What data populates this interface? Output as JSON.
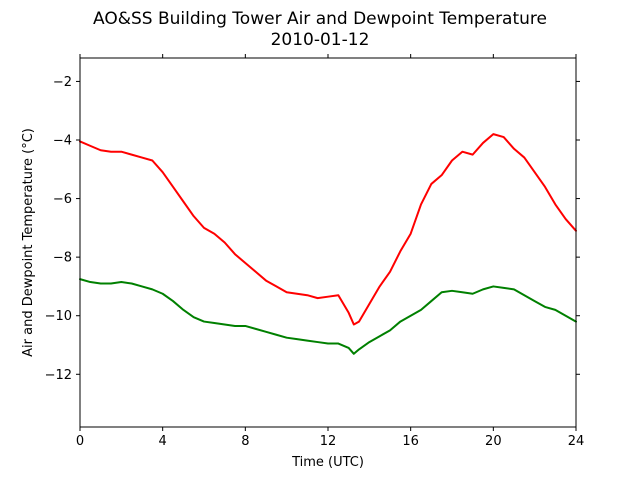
{
  "chart_data": {
    "type": "line",
    "title": "AO&SS Building Tower Air and Dewpoint Temperature",
    "subtitle": "2010-01-12",
    "xlabel": "Time (UTC)",
    "ylabel": "Air and Dewpoint Temperature (°C)",
    "xlim": [
      0,
      24
    ],
    "ylim": [
      -13.8,
      -1.2
    ],
    "xticks": [
      0,
      4,
      8,
      12,
      16,
      20,
      24
    ],
    "yticks": [
      -12,
      -10,
      -8,
      -6,
      -4,
      -2
    ],
    "ytick_labels": [
      "−12",
      "−10",
      "−8",
      "−6",
      "−4",
      "−2"
    ],
    "grid": false,
    "x": [
      0,
      0.5,
      1,
      1.5,
      2,
      2.5,
      3,
      3.5,
      4,
      4.5,
      5,
      5.5,
      6,
      6.5,
      7,
      7.5,
      8,
      8.5,
      9,
      9.5,
      10,
      10.5,
      11,
      11.5,
      12,
      12.5,
      13,
      13.25,
      13.5,
      14,
      14.5,
      15,
      15.5,
      16,
      16.5,
      17,
      17.5,
      18,
      18.5,
      19,
      19.5,
      20,
      20.5,
      21,
      21.5,
      22,
      22.5,
      23,
      23.5,
      24
    ],
    "series": [
      {
        "color": "#ff0000",
        "values": [
          -4.05,
          -4.2,
          -4.35,
          -4.4,
          -4.4,
          -4.5,
          -4.6,
          -4.7,
          -5.1,
          -5.6,
          -6.1,
          -6.6,
          -7.0,
          -7.2,
          -7.5,
          -7.9,
          -8.2,
          -8.5,
          -8.8,
          -9.0,
          -9.2,
          -9.25,
          -9.3,
          -9.4,
          -9.35,
          -9.3,
          -9.9,
          -10.3,
          -10.2,
          -9.6,
          -9.0,
          -8.5,
          -7.8,
          -7.2,
          -6.2,
          -5.5,
          -5.2,
          -4.7,
          -4.4,
          -4.5,
          -4.1,
          -3.8,
          -3.9,
          -4.3,
          -4.6,
          -5.1,
          -5.6,
          -6.2,
          -6.7,
          -7.1
        ]
      },
      {
        "color": "#008000",
        "values": [
          -8.75,
          -8.85,
          -8.9,
          -8.9,
          -8.85,
          -8.9,
          -9.0,
          -9.1,
          -9.25,
          -9.5,
          -9.8,
          -10.05,
          -10.2,
          -10.25,
          -10.3,
          -10.35,
          -10.35,
          -10.45,
          -10.55,
          -10.65,
          -10.75,
          -10.8,
          -10.85,
          -10.9,
          -10.95,
          -10.95,
          -11.1,
          -11.3,
          -11.15,
          -10.9,
          -10.7,
          -10.5,
          -10.2,
          -10.0,
          -9.8,
          -9.5,
          -9.2,
          -9.15,
          -9.2,
          -9.25,
          -9.1,
          -9.0,
          -9.05,
          -9.1,
          -9.3,
          -9.5,
          -9.7,
          -9.8,
          -10.0,
          -10.2
        ]
      }
    ]
  }
}
